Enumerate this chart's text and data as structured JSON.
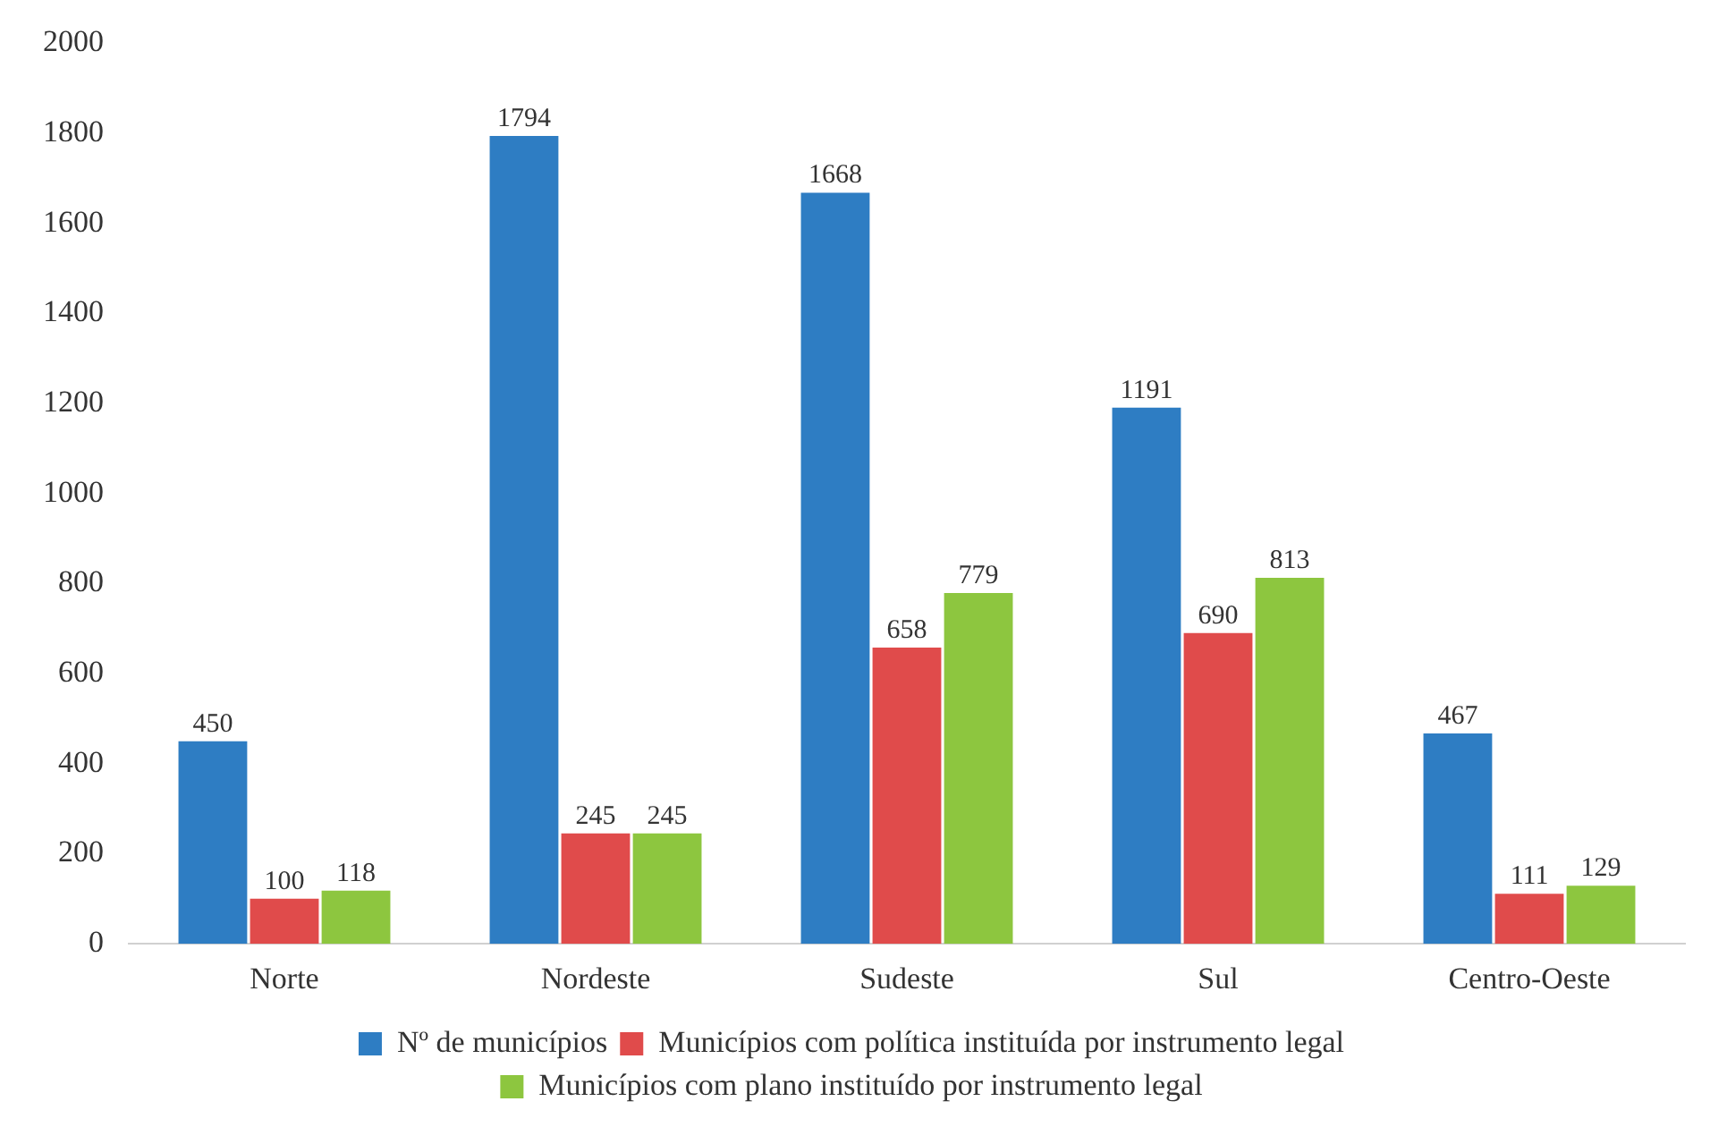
{
  "chart_data": {
    "type": "bar",
    "categories": [
      "Norte",
      "Nordeste",
      "Sudeste",
      "Sul",
      "Centro-Oeste"
    ],
    "series": [
      {
        "name": "Nº de municípios",
        "color": "#2e7dc3",
        "values": [
          450,
          1794,
          1668,
          1191,
          467
        ]
      },
      {
        "name": "Municípios com política instituída por instrumento legal",
        "color": "#e04b4b",
        "values": [
          100,
          245,
          658,
          690,
          111
        ]
      },
      {
        "name": "Municípios com plano instituído por instrumento legal",
        "color": "#8dc63f",
        "values": [
          118,
          245,
          779,
          813,
          129
        ]
      }
    ],
    "ylim": [
      0,
      2000
    ],
    "yticks": [
      0,
      200,
      400,
      600,
      800,
      1000,
      1200,
      1400,
      1600,
      1800,
      2000
    ],
    "grid": false,
    "legend": "bottom",
    "data_labels": true
  }
}
